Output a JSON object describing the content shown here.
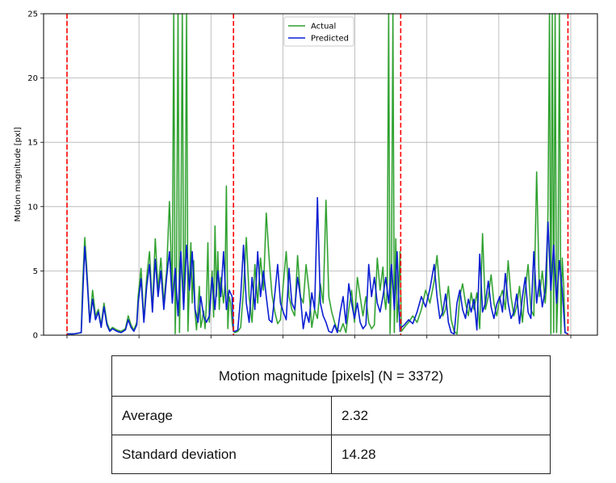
{
  "chart_data": {
    "type": "line",
    "ylabel": "Motion magnitude [pxl]",
    "xlabel": "",
    "ylim": [
      0,
      25
    ],
    "yticks": [
      0,
      5,
      10,
      15,
      20,
      25
    ],
    "xlim": [
      0,
      708
    ],
    "x_tick_count": 8,
    "grid": true,
    "legend": {
      "placement": "top-center",
      "entries": [
        "Actual",
        "Predicted"
      ]
    },
    "segment_boundaries": [
      0,
      234,
      469,
      704
    ],
    "colors": {
      "actual": "#2ca02c",
      "predicted": "#0a1ed2",
      "boundary": "#ff0000",
      "shadow": "#cfe8cf"
    },
    "series": [
      {
        "name": "Actual",
        "x": [
          0,
          10,
          20,
          22,
          25,
          28,
          32,
          36,
          40,
          44,
          48,
          52,
          56,
          60,
          64,
          70,
          76,
          82,
          86,
          90,
          94,
          98,
          100,
          104,
          108,
          112,
          116,
          120,
          124,
          128,
          132,
          136,
          140,
          144,
          148,
          150,
          152,
          154,
          156,
          158,
          160,
          162,
          164,
          166,
          168,
          170,
          172,
          174,
          176,
          178,
          180,
          182,
          184,
          186,
          188,
          190,
          192,
          194,
          196,
          198,
          200,
          202,
          204,
          206,
          208,
          210,
          212,
          214,
          216,
          218,
          220,
          222,
          224,
          226,
          228,
          230,
          232,
          234,
          236,
          240,
          244,
          248,
          252,
          256,
          260,
          264,
          268,
          272,
          276,
          280,
          284,
          288,
          292,
          296,
          300,
          304,
          308,
          312,
          316,
          320,
          324,
          328,
          332,
          336,
          340,
          344,
          348,
          352,
          356,
          360,
          364,
          368,
          372,
          376,
          380,
          384,
          388,
          392,
          396,
          400,
          404,
          408,
          412,
          416,
          420,
          424,
          428,
          432,
          436,
          440,
          444,
          446,
          448,
          450,
          452,
          454,
          456,
          458,
          460,
          462,
          464,
          466,
          468,
          470,
          474,
          480,
          486,
          492,
          498,
          504,
          510,
          516,
          520,
          524,
          528,
          532,
          536,
          540,
          544,
          548,
          552,
          556,
          560,
          564,
          568,
          572,
          576,
          580,
          584,
          588,
          592,
          596,
          600,
          604,
          608,
          612,
          616,
          620,
          624,
          628,
          632,
          636,
          640,
          644,
          648,
          652,
          656,
          660,
          664,
          668,
          672,
          674,
          676,
          678,
          680,
          682,
          684,
          686,
          688,
          690,
          692,
          694,
          696,
          698,
          700,
          704
        ],
        "values": [
          0.1,
          0.1,
          0.2,
          4.0,
          7.6,
          5.0,
          1.0,
          3.5,
          1.5,
          2.0,
          0.8,
          2.5,
          1.0,
          0.4,
          0.6,
          0.4,
          0.3,
          0.5,
          1.5,
          0.8,
          0.4,
          1.0,
          3.0,
          5.2,
          1.2,
          4.5,
          6.5,
          2.0,
          7.5,
          3.5,
          6.0,
          2.5,
          5.0,
          10.4,
          3.0,
          25,
          0.1,
          5.5,
          25,
          0.2,
          7.0,
          25,
          2.5,
          6.5,
          25,
          0.3,
          4.0,
          7.2,
          2.5,
          5.8,
          1.8,
          0.4,
          2.0,
          3.8,
          0.6,
          1.2,
          1.9,
          0.5,
          2.5,
          7.2,
          1.0,
          3.5,
          5.0,
          1.4,
          8.5,
          3.0,
          6.5,
          2.0,
          4.5,
          3.5,
          2.5,
          4.0,
          11.6,
          0.5,
          3.0,
          2.5,
          1.0,
          0.3,
          0.2,
          0.3,
          0.6,
          3.5,
          7.6,
          3.0,
          1.0,
          5.5,
          2.5,
          6.0,
          3.5,
          9.5,
          6.0,
          3.2,
          1.8,
          0.9,
          1.2,
          4.0,
          6.5,
          3.0,
          2.0,
          1.5,
          6.2,
          3.0,
          2.5,
          5.5,
          3.5,
          0.6,
          2.0,
          1.3,
          4.0,
          2.5,
          10.5,
          3.0,
          1.8,
          1.0,
          0.4,
          0.3,
          0.9,
          0.2,
          2.0,
          3.5,
          1.0,
          4.5,
          3.0,
          1.5,
          3.0,
          1.0,
          0.5,
          0.8,
          6.0,
          3.5,
          5.3,
          3.0,
          2.0,
          3.5,
          25,
          0.1,
          5.0,
          25,
          0.2,
          7.5,
          1.0,
          3.0,
          6.5,
          0.3,
          0.6,
          1.0,
          1.5,
          1.0,
          2.0,
          3.5,
          2.5,
          4.2,
          6.2,
          3.5,
          1.5,
          2.0,
          3.8,
          1.2,
          0.3,
          0.1,
          3.0,
          4.0,
          2.5,
          1.5,
          3.3,
          2.0,
          3.3,
          0.5,
          7.9,
          2.0,
          3.0,
          4.7,
          2.5,
          1.5,
          2.8,
          3.5,
          2.0,
          5.8,
          3.0,
          1.5,
          2.2,
          3.8,
          1.0,
          3.5,
          5.5,
          2.0,
          1.5,
          12.7,
          3.0,
          5.0,
          2.5,
          4.0,
          9.8,
          25,
          0.1,
          25,
          0.2,
          25,
          0.2,
          3.5,
          25,
          0.1,
          6.0,
          3.8,
          0.2,
          0.1
        ]
      },
      {
        "name": "Predicted",
        "x": [
          0,
          10,
          20,
          22,
          25,
          28,
          32,
          36,
          40,
          44,
          48,
          52,
          56,
          60,
          64,
          70,
          76,
          82,
          86,
          90,
          94,
          98,
          100,
          104,
          108,
          112,
          116,
          120,
          124,
          128,
          132,
          136,
          140,
          144,
          148,
          152,
          156,
          160,
          164,
          168,
          172,
          176,
          180,
          184,
          188,
          192,
          196,
          200,
          204,
          208,
          212,
          216,
          220,
          224,
          228,
          232,
          234,
          236,
          240,
          244,
          248,
          252,
          256,
          260,
          264,
          268,
          272,
          276,
          280,
          284,
          288,
          292,
          296,
          300,
          304,
          308,
          312,
          316,
          320,
          324,
          328,
          332,
          336,
          340,
          344,
          348,
          352,
          356,
          360,
          364,
          368,
          372,
          376,
          380,
          384,
          388,
          392,
          396,
          400,
          404,
          408,
          412,
          416,
          420,
          424,
          428,
          432,
          436,
          440,
          444,
          448,
          452,
          456,
          460,
          464,
          466,
          468,
          470,
          474,
          480,
          486,
          492,
          498,
          504,
          510,
          516,
          520,
          524,
          528,
          532,
          536,
          540,
          544,
          548,
          552,
          556,
          560,
          564,
          568,
          572,
          576,
          580,
          584,
          588,
          592,
          596,
          600,
          604,
          608,
          612,
          616,
          620,
          624,
          628,
          632,
          636,
          640,
          644,
          648,
          652,
          656,
          660,
          664,
          668,
          672,
          676,
          680,
          684,
          688,
          692,
          696,
          700,
          704
        ],
        "values": [
          0.1,
          0.1,
          0.2,
          3.0,
          6.9,
          4.5,
          1.0,
          2.8,
          1.2,
          1.8,
          0.6,
          2.2,
          0.8,
          0.3,
          0.5,
          0.3,
          0.2,
          0.4,
          1.2,
          0.6,
          0.3,
          0.8,
          2.5,
          4.4,
          1.0,
          3.8,
          5.5,
          1.8,
          5.9,
          3.0,
          5.0,
          2.0,
          4.5,
          6.5,
          2.5,
          5.2,
          1.5,
          6.5,
          2.0,
          7.0,
          3.5,
          6.5,
          2.0,
          1.0,
          3.0,
          1.5,
          1.0,
          1.5,
          4.5,
          2.0,
          5.0,
          3.0,
          6.5,
          2.0,
          3.5,
          3.0,
          0.3,
          0.3,
          0.4,
          3.0,
          7.0,
          2.5,
          1.0,
          4.5,
          2.0,
          6.5,
          3.0,
          5.0,
          3.0,
          1.2,
          1.0,
          3.2,
          5.5,
          2.5,
          1.8,
          1.2,
          5.2,
          2.5,
          2.0,
          4.5,
          3.0,
          0.5,
          1.8,
          1.0,
          3.3,
          2.0,
          10.7,
          2.5,
          1.5,
          1.0,
          0.3,
          0.2,
          0.8,
          0.2,
          1.8,
          3.0,
          0.9,
          4.0,
          2.5,
          1.3,
          2.5,
          1.0,
          0.5,
          0.8,
          5.5,
          3.0,
          4.5,
          2.5,
          1.8,
          3.0,
          4.5,
          2.5,
          5.5,
          2.0,
          6.5,
          3.0,
          0.3,
          0.6,
          0.8,
          1.2,
          0.9,
          1.8,
          3.0,
          2.2,
          3.6,
          5.5,
          3.0,
          1.3,
          1.8,
          3.2,
          1.0,
          0.2,
          0.1,
          2.5,
          3.5,
          2.0,
          1.3,
          2.8,
          1.8,
          2.8,
          0.4,
          6.3,
          1.8,
          2.5,
          4.2,
          2.2,
          1.3,
          2.4,
          3.0,
          1.8,
          4.8,
          2.5,
          1.3,
          1.8,
          3.2,
          0.9,
          3.0,
          4.5,
          1.8,
          1.3,
          6.5,
          2.5,
          4.3,
          2.2,
          3.5,
          8.8,
          3.5,
          7.0,
          2.5,
          5.8,
          3.5,
          0.2,
          0.1
        ]
      }
    ]
  },
  "table": {
    "header": "Motion magnitude [pixels] (N = 3372)",
    "rows": [
      {
        "label": "Average",
        "value": "2.32"
      },
      {
        "label": "Standard deviation",
        "value": "14.28"
      }
    ]
  }
}
